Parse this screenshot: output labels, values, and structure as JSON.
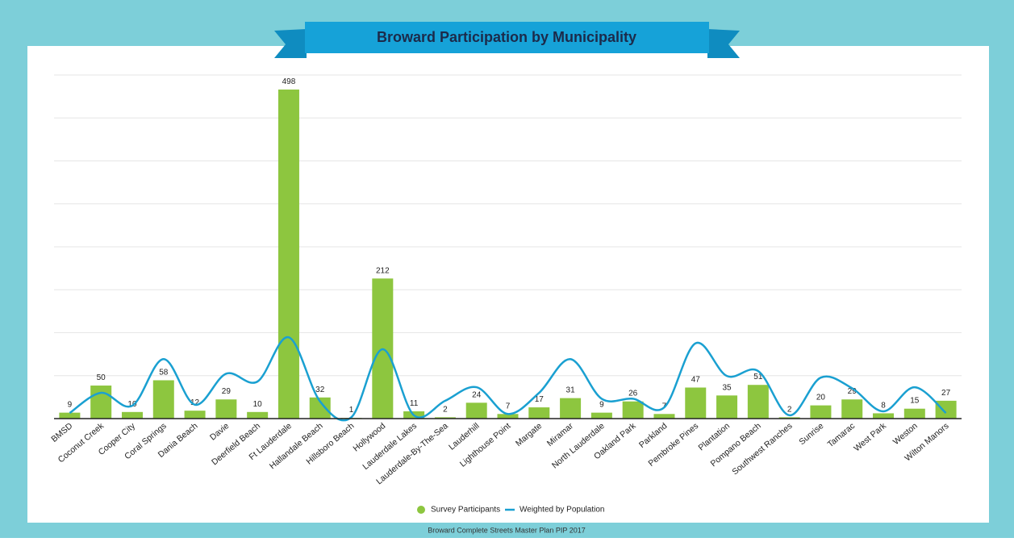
{
  "chart_data": {
    "type": "bar_line",
    "title": "Broward Participation by Municipality",
    "footer": "Broward Complete Streets Master Plan PIP 2017",
    "categories": [
      "BMSD",
      "Coconut Creek",
      "Cooper City",
      "Coral Springs",
      "Dania Beach",
      "Davie",
      "Deerfield Beach",
      "Ft Lauderdale",
      "Hallandale Beach",
      "Hillsboro Beach",
      "Hollywood",
      "Lauderdale Lakes",
      "Lauderdale-By-The-Sea",
      "Lauderhill",
      "Lighthouse Point",
      "Margate",
      "Miramar",
      "North Lauderdale",
      "Oakland Park",
      "Parkland",
      "Pembroke Pines",
      "Plantation",
      "Pompano Beach",
      "Southwest Ranches",
      "Sunrise",
      "Tamarac",
      "West Park",
      "Weston",
      "Wilton Manors"
    ],
    "series": [
      {
        "name": "Survey Participants",
        "type": "bar",
        "color": "#8dc63f",
        "values": [
          9,
          50,
          10,
          58,
          12,
          29,
          10,
          498,
          32,
          1,
          212,
          11,
          2,
          24,
          7,
          17,
          31,
          9,
          26,
          7,
          47,
          35,
          51,
          2,
          20,
          29,
          8,
          15,
          27
        ]
      },
      {
        "name": "Weighted by Population",
        "type": "line",
        "color": "#1aa0d1",
        "values": [
          8.5,
          39,
          19.5,
          90,
          21,
          68,
          56,
          123,
          26,
          2,
          105,
          5,
          27,
          47.5,
          7,
          39,
          90,
          30,
          30,
          17,
          114,
          64.5,
          72,
          5,
          62,
          46,
          11,
          47.5,
          8.5
        ]
      }
    ],
    "ylim": [
      0,
      520
    ],
    "yticks": [
      0,
      65,
      130,
      195,
      260,
      325,
      390,
      455,
      520
    ],
    "grid": true,
    "legend": "bottom"
  }
}
